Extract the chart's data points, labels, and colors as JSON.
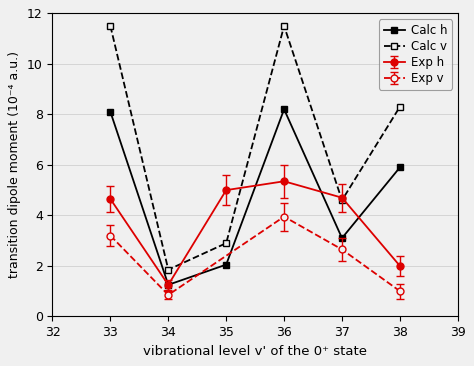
{
  "x": [
    33,
    34,
    35,
    36,
    37,
    38
  ],
  "exp_h_y": [
    4.65,
    1.25,
    5.0,
    5.35,
    4.7,
    2.0
  ],
  "exp_h_yerr": [
    0.5,
    0.2,
    0.6,
    0.65,
    0.55,
    0.4
  ],
  "exp_v_y": [
    3.2,
    0.85,
    null,
    3.95,
    2.65,
    1.0
  ],
  "exp_v_yerr": [
    0.4,
    0.15,
    null,
    0.55,
    0.45,
    0.3
  ],
  "calc_h_y": [
    8.1,
    1.25,
    2.05,
    8.2,
    3.1,
    5.9
  ],
  "calc_v_y": [
    11.5,
    1.85,
    2.9,
    11.5,
    4.6,
    8.3
  ],
  "xlabel": "vibrational level v' of the 0⁺ state",
  "ylabel": "transition dipole moment (10⁻⁴ a.u.)",
  "xlim": [
    32,
    39
  ],
  "ylim": [
    0,
    12
  ],
  "yticks": [
    0,
    2,
    4,
    6,
    8,
    10,
    12
  ],
  "xticks": [
    32,
    33,
    34,
    35,
    36,
    37,
    38,
    39
  ],
  "legend_labels": [
    "Exp h",
    "Exp v",
    "Calc h",
    "Calc v"
  ],
  "color_red": "#dd0000",
  "color_black": "#000000",
  "bg_color": "#f0f0f0"
}
